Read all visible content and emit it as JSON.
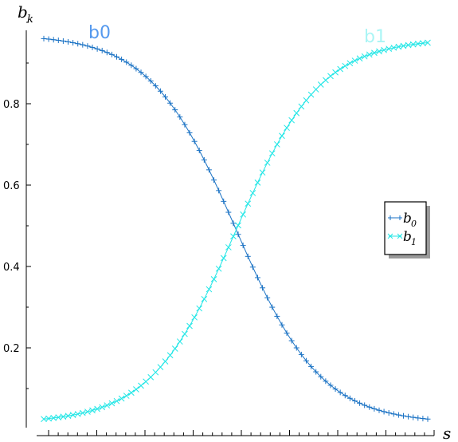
{
  "chart_data": {
    "type": "line",
    "xlabel": "s",
    "ylabel": {
      "base": "b",
      "sub": "k"
    },
    "ylim": [
      0,
      1
    ],
    "yticks": [
      0.2,
      0.4,
      0.6,
      0.8
    ],
    "yticks_text": [
      "0.2",
      "0.4",
      "0.6",
      "0.8"
    ],
    "xlim": [
      0,
      1
    ],
    "grid": false,
    "legend": {
      "position": "right",
      "entries": [
        {
          "base": "b",
          "sub": "0"
        },
        {
          "base": "b",
          "sub": "1"
        }
      ]
    },
    "annotations": [
      {
        "text": "b0",
        "series": "b0",
        "color": "#5599ee"
      },
      {
        "text": "b1",
        "series": "b1",
        "color": "#aaf5f5"
      }
    ],
    "series": [
      {
        "name": "b0",
        "color": "#1a72c4",
        "marker": "+",
        "x_range": [
          0,
          1
        ],
        "points": 80,
        "start": 0.96,
        "end": 0.025,
        "midpoint": 0.5,
        "steepness": 9
      },
      {
        "name": "b1",
        "color": "#22e6e6",
        "marker": "x",
        "x_range": [
          0,
          1
        ],
        "points": 80,
        "start": 0.025,
        "end": 0.95,
        "midpoint": 0.5,
        "steepness": 9
      }
    ]
  }
}
